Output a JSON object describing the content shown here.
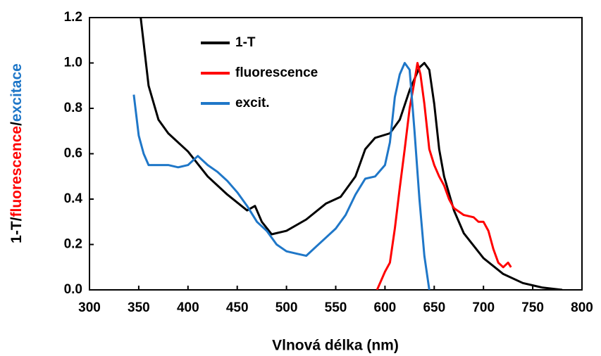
{
  "chart_data": {
    "type": "line",
    "xlabel": "Vlnová délka (nm)",
    "ylabel_parts": [
      {
        "text": "1-T/",
        "color": "#000000"
      },
      {
        "text": "fluorescence",
        "color": "#ff0000"
      },
      {
        "text": "/",
        "color": "#000000"
      },
      {
        "text": "excitace",
        "color": "#1f77c8"
      }
    ],
    "xlim": [
      300,
      800
    ],
    "xticks": [
      300,
      350,
      400,
      450,
      500,
      550,
      600,
      650,
      700,
      750,
      800
    ],
    "ylim": [
      0,
      1.2
    ],
    "yticks": [
      {
        "value": 0,
        "label": "0.0"
      },
      0.2,
      0.4,
      0.6,
      0.8,
      {
        "value": 1,
        "label": "1.0"
      },
      1.2
    ],
    "series": [
      {
        "name": "1-T",
        "color": "#000000",
        "x": [
          352,
          360,
          370,
          380,
          400,
          420,
          440,
          460,
          468,
          475,
          485,
          500,
          520,
          540,
          555,
          570,
          580,
          590,
          605,
          615,
          625,
          635,
          640,
          645,
          650,
          655,
          660,
          670,
          680,
          700,
          720,
          740,
          760,
          780
        ],
        "values": [
          1.2,
          0.9,
          0.75,
          0.69,
          0.61,
          0.5,
          0.42,
          0.35,
          0.37,
          0.3,
          0.245,
          0.26,
          0.31,
          0.38,
          0.41,
          0.5,
          0.62,
          0.67,
          0.69,
          0.75,
          0.88,
          0.98,
          1.0,
          0.97,
          0.82,
          0.62,
          0.5,
          0.35,
          0.25,
          0.14,
          0.07,
          0.03,
          0.01,
          0.0
        ]
      },
      {
        "name": "fluorescence",
        "color": "#ff0000",
        "x": [
          592,
          600,
          605,
          610,
          615,
          620,
          625,
          630,
          633,
          636,
          640,
          645,
          650,
          655,
          660,
          665,
          670,
          680,
          690,
          695,
          700,
          705,
          710,
          715,
          720,
          725,
          728
        ],
        "values": [
          0,
          0.08,
          0.12,
          0.27,
          0.45,
          0.62,
          0.8,
          0.92,
          1.0,
          0.95,
          0.82,
          0.62,
          0.55,
          0.5,
          0.46,
          0.4,
          0.36,
          0.33,
          0.32,
          0.3,
          0.3,
          0.26,
          0.18,
          0.12,
          0.1,
          0.12,
          0.1
        ]
      },
      {
        "name": "excit.",
        "color": "#1f77c8",
        "x": [
          345,
          350,
          355,
          360,
          370,
          380,
          390,
          400,
          410,
          420,
          430,
          440,
          450,
          460,
          470,
          480,
          490,
          500,
          510,
          520,
          530,
          540,
          550,
          560,
          570,
          580,
          590,
          600,
          605,
          610,
          615,
          620,
          625,
          630,
          635,
          640,
          645
        ],
        "values": [
          0.86,
          0.68,
          0.6,
          0.55,
          0.55,
          0.55,
          0.54,
          0.55,
          0.59,
          0.55,
          0.52,
          0.48,
          0.43,
          0.37,
          0.3,
          0.26,
          0.2,
          0.17,
          0.16,
          0.15,
          0.19,
          0.23,
          0.27,
          0.33,
          0.42,
          0.49,
          0.5,
          0.55,
          0.65,
          0.85,
          0.95,
          1.0,
          0.97,
          0.7,
          0.4,
          0.15,
          0.0
        ]
      }
    ]
  }
}
